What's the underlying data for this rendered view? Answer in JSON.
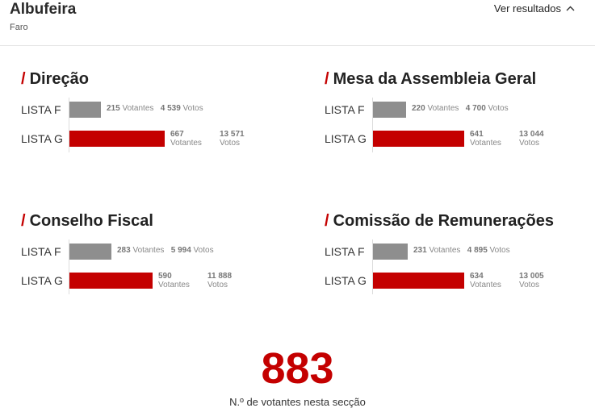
{
  "header": {
    "title": "Albufeira",
    "subtitle": "Faro",
    "toggle_label": "Ver resultados"
  },
  "colors": {
    "accent": "#c40000",
    "lista_f": "#8e8e8e",
    "lista_g": "#c40000"
  },
  "max_votes": 13571,
  "sections": [
    {
      "title": "Direção",
      "rows": [
        {
          "label": "LISTA F",
          "votantes": "215",
          "votantes_unit": "Votantes",
          "votos": "4 539",
          "votos_unit": "Votos",
          "votos_value": 4539
        },
        {
          "label": "LISTA G",
          "votantes": "667",
          "votantes_unit": "Votantes",
          "votos": "13 571",
          "votos_unit": "Votos",
          "votos_value": 13571
        }
      ]
    },
    {
      "title": "Mesa da Assembleia Geral",
      "rows": [
        {
          "label": "LISTA F",
          "votantes": "220",
          "votantes_unit": "Votantes",
          "votos": "4 700",
          "votos_unit": "Votos",
          "votos_value": 4700
        },
        {
          "label": "LISTA G",
          "votantes": "641",
          "votantes_unit": "Votantes",
          "votos": "13 044",
          "votos_unit": "Votos",
          "votos_value": 13044
        }
      ]
    },
    {
      "title": "Conselho Fiscal",
      "rows": [
        {
          "label": "LISTA F",
          "votantes": "283",
          "votantes_unit": "Votantes",
          "votos": "5 994",
          "votos_unit": "Votos",
          "votos_value": 5994
        },
        {
          "label": "LISTA G",
          "votantes": "590",
          "votantes_unit": "Votantes",
          "votos": "11 888",
          "votos_unit": "Votos",
          "votos_value": 11888
        }
      ]
    },
    {
      "title": "Comissão de Remunerações",
      "rows": [
        {
          "label": "LISTA F",
          "votantes": "231",
          "votantes_unit": "Votantes",
          "votos": "4 895",
          "votos_unit": "Votos",
          "votos_value": 4895
        },
        {
          "label": "LISTA G",
          "votantes": "634",
          "votantes_unit": "Votantes",
          "votos": "13 005",
          "votos_unit": "Votos",
          "votos_value": 13005
        }
      ]
    }
  ],
  "summary": {
    "total": "883",
    "label": "N.º de votantes nesta secção"
  }
}
